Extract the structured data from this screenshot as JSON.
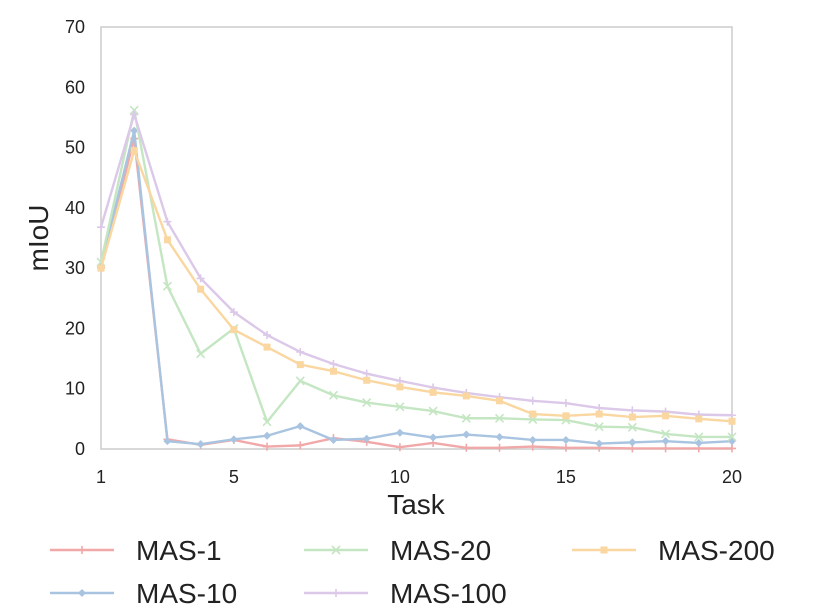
{
  "chart_data": {
    "type": "line",
    "xlabel": "Task",
    "ylabel": "mIoU",
    "xlim": [
      1,
      20
    ],
    "ylim": [
      0,
      70
    ],
    "x_ticks": [
      1,
      5,
      10,
      15,
      20
    ],
    "y_ticks": [
      0,
      10,
      20,
      30,
      40,
      50,
      60,
      70
    ],
    "grid": false,
    "legend_position": "bottom",
    "x": [
      1,
      2,
      3,
      4,
      5,
      6,
      7,
      8,
      9,
      10,
      11,
      12,
      13,
      14,
      15,
      16,
      17,
      18,
      19,
      20
    ],
    "series": [
      {
        "name": "MAS-1",
        "color": "#f0a8a8",
        "marker": "plus",
        "values": [
          30.1,
          51.5,
          1.6,
          0.7,
          1.5,
          0.4,
          0.6,
          1.8,
          1.2,
          0.3,
          1.0,
          0.2,
          0.2,
          0.4,
          0.2,
          0.2,
          0.1,
          0.1,
          0.1,
          0.1
        ]
      },
      {
        "name": "MAS-10",
        "color": "#a8c4e0",
        "marker": "diamond",
        "values": [
          30.5,
          52.8,
          1.3,
          0.8,
          1.6,
          2.2,
          3.8,
          1.5,
          1.7,
          2.7,
          1.9,
          2.4,
          2.0,
          1.5,
          1.5,
          0.9,
          1.1,
          1.3,
          1.0,
          1.3
        ]
      },
      {
        "name": "MAS-20",
        "color": "#c4e6c2",
        "marker": "x",
        "values": [
          31.0,
          56.2,
          27.0,
          15.8,
          20.0,
          4.5,
          11.3,
          8.9,
          7.7,
          7.0,
          6.3,
          5.1,
          5.1,
          4.9,
          4.8,
          3.7,
          3.6,
          2.5,
          2.0,
          2.0
        ]
      },
      {
        "name": "MAS-100",
        "color": "#dcc8e8",
        "marker": "plus",
        "values": [
          36.8,
          55.5,
          37.7,
          28.3,
          22.7,
          18.9,
          16.1,
          14.1,
          12.5,
          11.3,
          10.2,
          9.3,
          8.6,
          8.0,
          7.6,
          6.8,
          6.4,
          6.2,
          5.7,
          5.6
        ]
      },
      {
        "name": "MAS-200",
        "color": "#fad6a0",
        "marker": "square",
        "values": [
          30.0,
          49.5,
          34.7,
          26.5,
          19.8,
          16.9,
          14.0,
          12.9,
          11.4,
          10.3,
          9.4,
          8.8,
          8.0,
          5.8,
          5.5,
          5.8,
          5.3,
          5.5,
          5.0,
          4.6
        ]
      }
    ]
  }
}
